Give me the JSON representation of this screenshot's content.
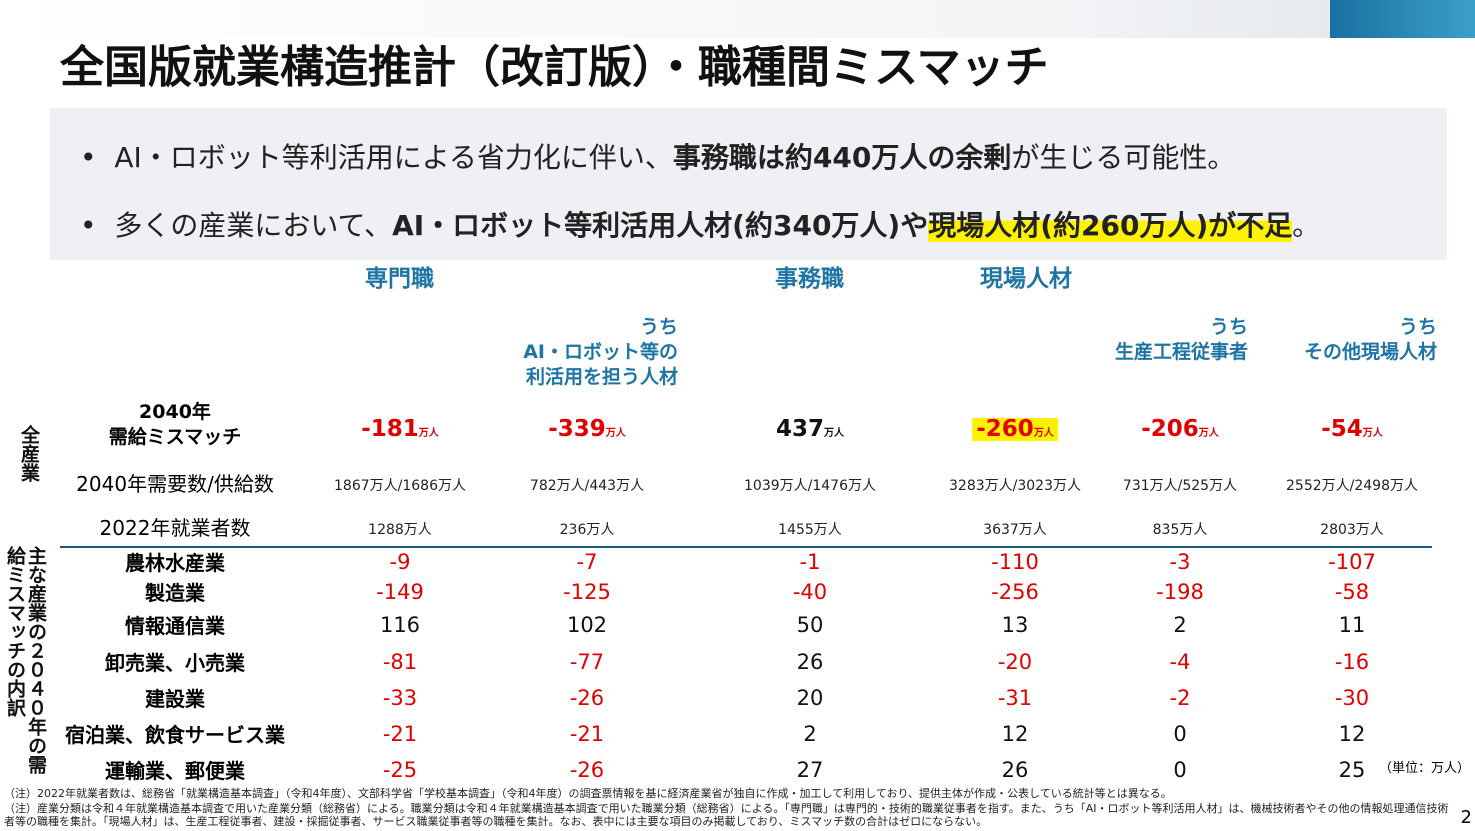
{
  "header": {
    "title": "全国版就業構造推計（改訂版）・職種間ミスマッチ"
  },
  "bullets": [
    {
      "segments": [
        {
          "text": "AI・ロボット等利活用による省力化に伴い、"
        },
        {
          "text": "事務職は約440万人の余剰",
          "bold": true
        },
        {
          "text": "が生じる可能性。"
        }
      ]
    },
    {
      "segments": [
        {
          "text": "多くの産業において、"
        },
        {
          "text": "AI・ロボット等利活用人材(約340万人)や",
          "bold": true
        },
        {
          "text": "現場人材(約260万人)が不足",
          "bold": true,
          "highlight": true
        },
        {
          "text": "。"
        }
      ]
    }
  ],
  "table": {
    "columns": [
      {
        "group": "専門職"
      },
      {
        "sub": [
          "うち",
          "AI・ロボット等の",
          "利活用を担う人材"
        ]
      },
      {
        "group": "事務職"
      },
      {
        "group": "現場人材"
      },
      {
        "sub": [
          "うち",
          "生産工程従事者"
        ]
      },
      {
        "sub": [
          "うち",
          "その他現場人材"
        ]
      }
    ],
    "section_labels": {
      "all": "全産業",
      "breakdown": "主な産業の２０４０年の需給ミスマッチの内訳"
    },
    "summary_rows": [
      {
        "label": [
          "2040年",
          "需給ミスマッチ"
        ],
        "values": [
          -181,
          -339,
          437,
          -260,
          -206,
          -54
        ],
        "unit": "万人",
        "highlighted_column": 3
      },
      {
        "label": "2040年需要数/供給数",
        "values": [
          "1867万人/1686万人",
          "782万人/443万人",
          "1039万人/1476万人",
          "3283万人/3023万人",
          "731万人/525万人",
          "2552万人/2498万人"
        ]
      },
      {
        "label": "2022年就業者数",
        "values": [
          "1288万人",
          "236万人",
          "1455万人",
          "3637万人",
          "835万人",
          "2803万人"
        ]
      }
    ],
    "industry_rows": [
      {
        "label": "農林水産業",
        "values": [
          -9,
          -7,
          -1,
          -110,
          -3,
          -107
        ]
      },
      {
        "label": "製造業",
        "values": [
          -149,
          -125,
          -40,
          -256,
          -198,
          -58
        ]
      },
      {
        "label": "情報通信業",
        "values": [
          116,
          102,
          50,
          13,
          2,
          11
        ]
      },
      {
        "label": "卸売業、小売業",
        "values": [
          -81,
          -77,
          26,
          -20,
          -4,
          -16
        ]
      },
      {
        "label": "建設業",
        "values": [
          -33,
          -26,
          20,
          -31,
          -2,
          -30
        ]
      },
      {
        "label": "宿泊業、飲食サービス業",
        "values": [
          -21,
          -21,
          2,
          12,
          0,
          12
        ]
      },
      {
        "label": "運輸業、郵便業",
        "values": [
          -25,
          -26,
          27,
          26,
          0,
          25
        ]
      }
    ],
    "unit_note": "（単位：万人）"
  },
  "footnotes": [
    "（注）2022年就業者数は、総務省「就業構造基本調査」（令和4年度）、文部科学省「学校基本調査」（令和4年度）の調査票情報を基に経済産業省が独自に作成・加工して利用しており、提供主体が作成・公表している統計等とは異なる。",
    "（注）産業分類は令和４年就業構造基本調査で用いた産業分類（総務省）による。職業分類は令和４年就業構造基本調査で用いた職業分類（総務省）による。「専門職」は専門的・技術的職業従事者を指す。また、うち「AI・ロボット等利活用人材」は、機械技術者やその他の情報処理通信技術者等の職種を集計。「現場人材」は、生産工程従事者、建設・採掘従事者、サービス職業従事者等の職種を集計。なお、表中には主要な項目のみ掲載しており、ミスマッチ数の合計はゼロにならない。"
  ],
  "page_number": "2"
}
